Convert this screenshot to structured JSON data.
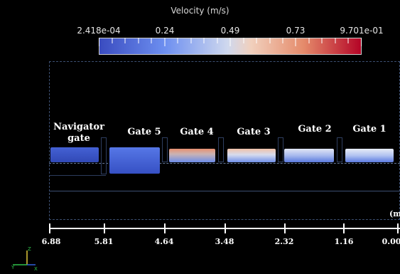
{
  "colorbar": {
    "title": "Velocity (m/s)",
    "ticks": [
      {
        "label": "2.418e-04"
      },
      {
        "label": "0.24"
      },
      {
        "label": "0.49"
      },
      {
        "label": "0.73"
      },
      {
        "label": "9.701e-01"
      }
    ],
    "colors": [
      "#3a4cc0",
      "#dddcdc",
      "#b40426"
    ]
  },
  "gates": [
    {
      "label": "Navigator gate"
    },
    {
      "label": "Gate 5"
    },
    {
      "label": "Gate 4"
    },
    {
      "label": "Gate 3"
    },
    {
      "label": "Gate 2"
    },
    {
      "label": "Gate 1"
    }
  ],
  "scale": {
    "unit": "(m",
    "ticks": [
      "6.88",
      "5.81",
      "4.64",
      "3.48",
      "2.32",
      "1.16",
      "0.00"
    ]
  },
  "axes": {
    "z": "Z",
    "y": "Y",
    "x": "X"
  }
}
